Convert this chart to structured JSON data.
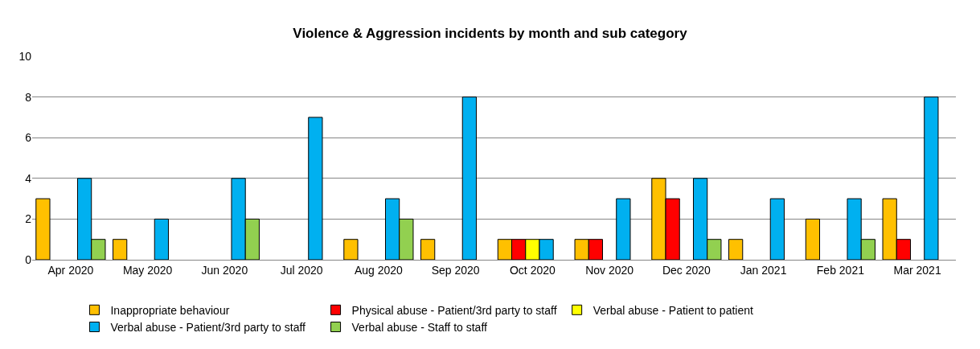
{
  "chart_data": {
    "type": "bar",
    "title": "Violence & Aggression incidents by month and sub category",
    "categories": [
      "Apr 2020",
      "May 2020",
      "Jun 2020",
      "Jul 2020",
      "Aug 2020",
      "Sep 2020",
      "Oct 2020",
      "Nov 2020",
      "Dec 2020",
      "Jan 2021",
      "Feb 2021",
      "Mar 2021"
    ],
    "series": [
      {
        "name": "Inappropriate behaviour",
        "color": "#ffc000",
        "values": [
          3,
          1,
          null,
          null,
          1,
          1,
          1,
          1,
          4,
          1,
          2,
          3
        ]
      },
      {
        "name": "Physical abuse - Patient/3rd party to staff",
        "color": "#ff0000",
        "values": [
          null,
          null,
          null,
          null,
          null,
          null,
          1,
          1,
          3,
          null,
          null,
          1
        ]
      },
      {
        "name": "Verbal abuse - Patient to patient",
        "color": "#ffff00",
        "values": [
          null,
          null,
          null,
          null,
          null,
          null,
          1,
          null,
          null,
          null,
          null,
          null
        ]
      },
      {
        "name": "Verbal abuse - Patient/3rd party to staff",
        "color": "#00b0f0",
        "values": [
          4,
          2,
          4,
          7,
          3,
          8,
          1,
          3,
          4,
          3,
          3,
          8
        ]
      },
      {
        "name": "Verbal abuse - Staff to staff",
        "color": "#92d050",
        "values": [
          1,
          null,
          2,
          null,
          2,
          null,
          null,
          null,
          1,
          null,
          1,
          null
        ]
      }
    ],
    "ylim": [
      0,
      10
    ],
    "yticks": [
      0,
      2,
      4,
      6,
      8,
      10
    ],
    "grid": "y",
    "legend": "bottom"
  }
}
